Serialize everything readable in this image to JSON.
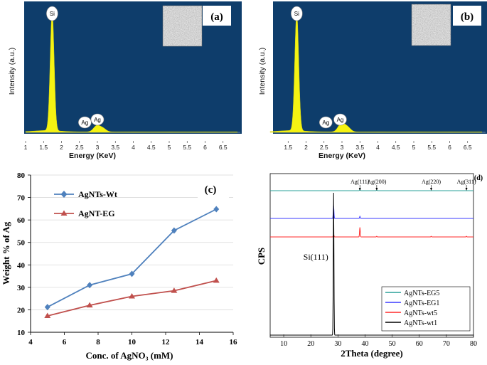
{
  "chart_data": [
    {
      "id": "a",
      "type": "area",
      "panel_label": "(a)",
      "title": "",
      "xlabel": "Energy (KeV)",
      "ylabel": "Intensity (a.u.)",
      "xlim": [
        1,
        7
      ],
      "x_ticks": [
        "1",
        "1.5",
        "2",
        "2.5",
        "3",
        "3.5",
        "4",
        "4.5",
        "5",
        "5.5",
        "6",
        "6.5"
      ],
      "background_color": "#0e3d6b",
      "fill_color": "#f5f312",
      "peaks": [
        {
          "name": "Si",
          "energy": 1.74,
          "height": 1.0
        },
        {
          "name": "Ag",
          "energy": 2.98,
          "height": 0.05
        },
        {
          "name": "Ag",
          "energy": 3.15,
          "height": 0.03
        }
      ],
      "peak_labels": [
        {
          "text": "Si",
          "energy": 1.74
        },
        {
          "text": "Ag",
          "energy": 2.65
        },
        {
          "text": "Ag",
          "energy": 3.0
        }
      ],
      "inset": "sem-texture-image"
    },
    {
      "id": "b",
      "type": "area",
      "panel_label": "(b)",
      "title": "",
      "xlabel": "Energy (KeV)",
      "ylabel": "Intensity (a.u.)",
      "xlim": [
        1,
        7
      ],
      "x_ticks": [
        "1.5",
        "2",
        "2.5",
        "3",
        "3.5",
        "4",
        "4.5",
        "5",
        "5.5",
        "6",
        "6.5"
      ],
      "background_color": "#0e3d6b",
      "fill_color": "#f5f312",
      "peaks": [
        {
          "name": "Si",
          "energy": 1.74,
          "height": 1.0
        },
        {
          "name": "Ag",
          "energy": 2.98,
          "height": 0.07
        },
        {
          "name": "Ag",
          "energy": 3.15,
          "height": 0.04
        }
      ],
      "peak_labels": [
        {
          "text": "Si",
          "energy": 1.74
        },
        {
          "text": "Ag",
          "energy": 2.55
        },
        {
          "text": "Ag",
          "energy": 2.95
        }
      ],
      "inset": "sem-texture-image"
    },
    {
      "id": "c",
      "type": "line",
      "panel_label": "(c)",
      "title": "",
      "xlabel": "Conc. of AgNO₃ (mM)",
      "ylabel": "Weight  % of Ag",
      "xlim": [
        4,
        16
      ],
      "ylim": [
        10,
        80
      ],
      "x_ticks": [
        4,
        6,
        8,
        10,
        12,
        14,
        16
      ],
      "y_ticks": [
        10,
        20,
        30,
        40,
        50,
        60,
        70,
        80
      ],
      "legend_position": "top-left",
      "series": [
        {
          "name": "AgNTs-Wt",
          "color": "#4f81bd",
          "marker": "diamond",
          "x": [
            5,
            7.5,
            10,
            12.5,
            15
          ],
          "values": [
            21.2,
            31,
            36,
            55.3,
            64.8
          ]
        },
        {
          "name": "AgNT-EG",
          "color": "#c0504d",
          "marker": "triangle",
          "x": [
            5,
            7.5,
            10,
            12.5,
            15
          ],
          "values": [
            17.3,
            22,
            26,
            28.5,
            33
          ]
        }
      ]
    },
    {
      "id": "d",
      "type": "line",
      "panel_label": "(d)",
      "title": "",
      "xlabel": "2Theta (degree)",
      "ylabel": "CPS",
      "xlim": [
        5,
        80
      ],
      "x_ticks": [
        10,
        20,
        30,
        40,
        50,
        60,
        70,
        80
      ],
      "legend_position": "bottom-right",
      "annotations": [
        {
          "text": "Ag(111)",
          "x": 38.1
        },
        {
          "text": "Ag(200)",
          "x": 44.3
        },
        {
          "text": "Ag(220)",
          "x": 64.4
        },
        {
          "text": "Ag(311)",
          "x": 77.4
        },
        {
          "text": "Si(111)",
          "x": 28.4
        }
      ],
      "series": [
        {
          "name": "AgNTs-EG5",
          "color": "#2aa198",
          "offset_rank": 3,
          "peaks": [
            {
              "x": 38.1,
              "h": 0.02
            },
            {
              "x": 44.3,
              "h": 0.01
            }
          ]
        },
        {
          "name": "AgNTs-EG1",
          "color": "#3b3bff",
          "offset_rank": 2,
          "peaks": [
            {
              "x": 28.4,
              "h": 0.18
            },
            {
              "x": 38.1,
              "h": 0.03
            }
          ]
        },
        {
          "name": "AgNTs-wt5",
          "color": "#ff2a2a",
          "offset_rank": 1,
          "peaks": [
            {
              "x": 28.4,
              "h": 0.04
            },
            {
              "x": 38.1,
              "h": 0.15
            },
            {
              "x": 44.3,
              "h": 0.01
            },
            {
              "x": 64.4,
              "h": 0.01
            },
            {
              "x": 77.4,
              "h": 0.01
            }
          ]
        },
        {
          "name": "AgNTs-wt1",
          "color": "#000000",
          "offset_rank": 0,
          "peaks": [
            {
              "x": 28.4,
              "h": 1.0
            }
          ]
        }
      ]
    }
  ]
}
